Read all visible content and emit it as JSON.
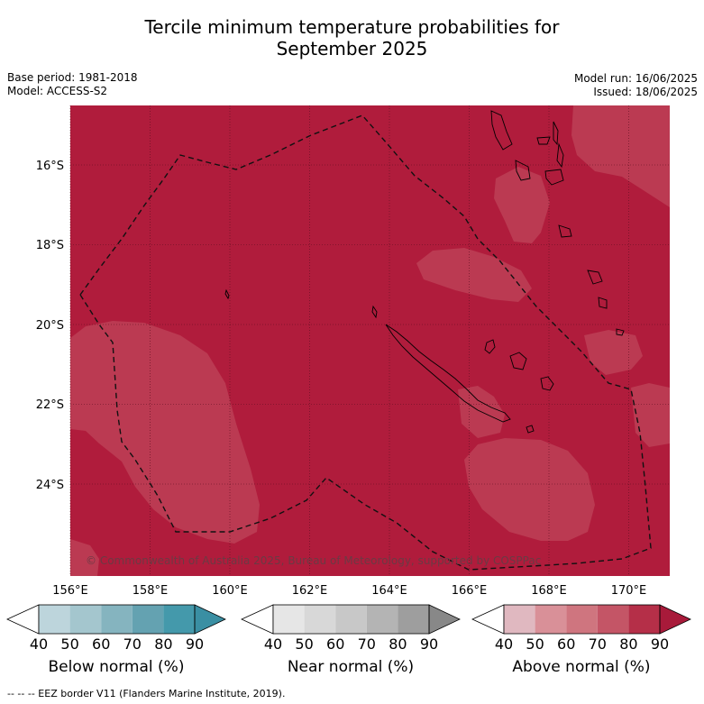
{
  "title_line1": "Tercile minimum temperature probabilities for",
  "title_line2": "September 2025",
  "base_period": "Base period: 1981-2018",
  "model": "Model: ACCESS-S2",
  "model_run": "Model run: 16/06/2025",
  "issued": "Issued: 18/06/2025",
  "copyright": "© Commonwealth of Australia 2025, Bureau of Meteorology, supported by COSPPac",
  "footnote": "--  --  -- EEZ border V11 (Flanders Marine Institute, 2019).",
  "lon_ticks": [
    "156°E",
    "158°E",
    "160°E",
    "162°E",
    "164°E",
    "166°E",
    "168°E",
    "170°E"
  ],
  "lat_ticks": [
    "16°S",
    "18°S",
    "20°S",
    "22°S",
    "24°S"
  ],
  "colorbars": [
    {
      "label": "Below normal (%)",
      "ticks": [
        "40",
        "50",
        "60",
        "70",
        "80",
        "90"
      ],
      "colors": [
        "#bdd5dc",
        "#a4c6ce",
        "#85b4bf",
        "#64a2b1",
        "#4499ab",
        "#3a8fa3"
      ]
    },
    {
      "label": "Near normal (%)",
      "ticks": [
        "40",
        "50",
        "60",
        "70",
        "80",
        "90"
      ],
      "colors": [
        "#e6e6e6",
        "#d8d8d8",
        "#c8c8c8",
        "#b4b4b4",
        "#9e9e9e",
        "#888888"
      ]
    },
    {
      "label": "Above normal (%)",
      "ticks": [
        "40",
        "50",
        "60",
        "70",
        "80",
        "90"
      ],
      "colors": [
        "#e0b8c0",
        "#d99098",
        "#cf757f",
        "#c45566",
        "#b52f48",
        "#a81a3a"
      ]
    }
  ],
  "map_colors": {
    "ocean_dominant": "#b01c3c",
    "lighter_patch": "#bb3a52"
  }
}
